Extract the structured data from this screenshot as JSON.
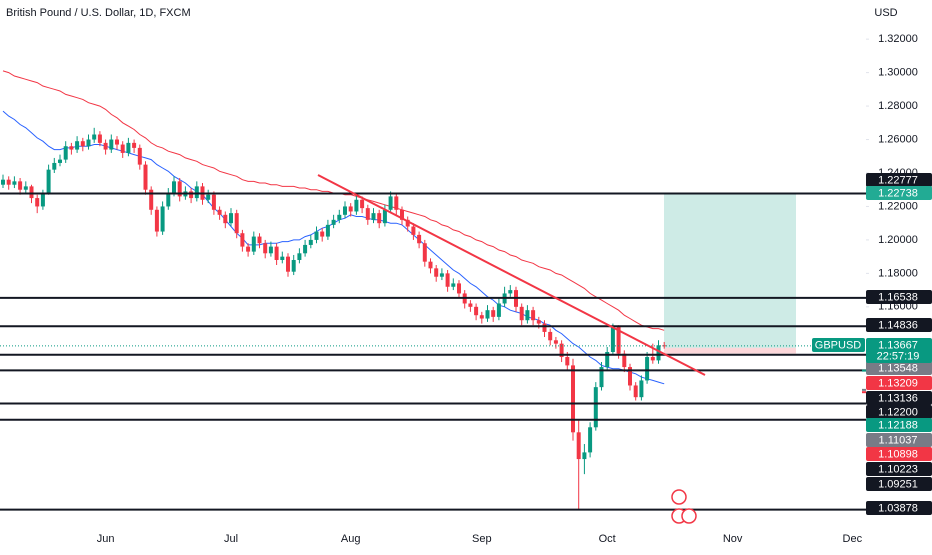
{
  "chart_data": {
    "type": "candlestick",
    "title": "British Pound / U.S. Dollar, 1D, FXCM",
    "currency": "USD",
    "up_color": "#089981",
    "down_color": "#f23645",
    "ylim": [
      1.029,
      1.3434
    ],
    "yticks": [
      {
        "value": 1.32,
        "label": "1.32000"
      },
      {
        "value": 1.3,
        "label": "1.30000"
      },
      {
        "value": 1.28,
        "label": "1.28000"
      },
      {
        "value": 1.26,
        "label": "1.26000"
      },
      {
        "value": 1.24,
        "label": "1.24000"
      },
      {
        "value": 1.22,
        "label": "1.22000"
      },
      {
        "value": 1.2,
        "label": "1.20000"
      },
      {
        "value": 1.18,
        "label": "1.18000"
      },
      {
        "value": 1.16,
        "label": "1.16000"
      }
    ],
    "grid": false,
    "categories": [
      null,
      null,
      null,
      null,
      null,
      null,
      null,
      null,
      null,
      null,
      null,
      null,
      null,
      null,
      null,
      null,
      null,
      null,
      "Jun",
      null,
      null,
      null,
      null,
      null,
      null,
      null,
      null,
      null,
      null,
      null,
      null,
      null,
      null,
      null,
      null,
      null,
      null,
      null,
      null,
      null,
      "Jul",
      null,
      null,
      null,
      null,
      null,
      null,
      null,
      null,
      null,
      null,
      null,
      null,
      null,
      null,
      null,
      null,
      null,
      null,
      null,
      null,
      "Aug",
      null,
      null,
      null,
      null,
      null,
      null,
      null,
      null,
      null,
      null,
      null,
      null,
      null,
      null,
      null,
      null,
      null,
      null,
      null,
      null,
      null,
      null,
      "Sep",
      null,
      null,
      null,
      null,
      null,
      null,
      null,
      null,
      null,
      null,
      null,
      null,
      null,
      null,
      null,
      null,
      null,
      null,
      null,
      null,
      null,
      "Oct",
      null,
      null,
      null,
      null,
      null,
      null,
      null,
      null,
      null,
      null,
      null,
      null,
      null,
      null,
      null,
      null,
      null,
      null,
      null,
      null,
      null,
      "Nov",
      null,
      null,
      null,
      null,
      null,
      null,
      null,
      null,
      null,
      null,
      null,
      null,
      null,
      null,
      null,
      null,
      null,
      null,
      null,
      null,
      "Dec",
      null,
      null,
      null
    ],
    "candles": [
      [
        1.233,
        1.239,
        1.231,
        1.236
      ],
      [
        1.236,
        1.238,
        1.23,
        1.233
      ],
      [
        1.233,
        1.238,
        1.231,
        1.235
      ],
      [
        1.235,
        1.237,
        1.227,
        1.23
      ],
      [
        1.23,
        1.235,
        1.228,
        1.232
      ],
      [
        1.232,
        1.233,
        1.222,
        1.225
      ],
      [
        1.225,
        1.227,
        1.216,
        1.22
      ],
      [
        1.22,
        1.23,
        1.218,
        1.228
      ],
      [
        1.228,
        1.245,
        1.227,
        1.242
      ],
      [
        1.242,
        1.249,
        1.24,
        1.246
      ],
      [
        1.246,
        1.251,
        1.244,
        1.248
      ],
      [
        1.248,
        1.259,
        1.246,
        1.256
      ],
      [
        1.256,
        1.258,
        1.251,
        1.254
      ],
      [
        1.254,
        1.262,
        1.252,
        1.259
      ],
      [
        1.259,
        1.261,
        1.253,
        1.256
      ],
      [
        1.256,
        1.263,
        1.254,
        1.26
      ],
      [
        1.26,
        1.267,
        1.258,
        1.263
      ],
      [
        1.263,
        1.265,
        1.256,
        1.258
      ],
      [
        1.258,
        1.26,
        1.251,
        1.254
      ],
      [
        1.254,
        1.263,
        1.252,
        1.26
      ],
      [
        1.26,
        1.262,
        1.254,
        1.257
      ],
      [
        1.257,
        1.259,
        1.249,
        1.252
      ],
      [
        1.252,
        1.261,
        1.25,
        1.258
      ],
      [
        1.258,
        1.26,
        1.252,
        1.255
      ],
      [
        1.255,
        1.257,
        1.242,
        1.245
      ],
      [
        1.245,
        1.247,
        1.227,
        1.23
      ],
      [
        1.23,
        1.232,
        1.215,
        1.218
      ],
      [
        1.218,
        1.22,
        1.202,
        1.205
      ],
      [
        1.205,
        1.223,
        1.203,
        1.22
      ],
      [
        1.22,
        1.231,
        1.218,
        1.228
      ],
      [
        1.228,
        1.238,
        1.226,
        1.235
      ],
      [
        1.235,
        1.237,
        1.223,
        1.226
      ],
      [
        1.226,
        1.232,
        1.224,
        1.229
      ],
      [
        1.229,
        1.231,
        1.222,
        1.225
      ],
      [
        1.225,
        1.235,
        1.223,
        1.232
      ],
      [
        1.232,
        1.234,
        1.221,
        1.224
      ],
      [
        1.224,
        1.23,
        1.222,
        1.227
      ],
      [
        1.227,
        1.229,
        1.215,
        1.218
      ],
      [
        1.218,
        1.22,
        1.212,
        1.215
      ],
      [
        1.215,
        1.217,
        1.207,
        1.21
      ],
      [
        1.21,
        1.219,
        1.208,
        1.216
      ],
      [
        1.216,
        1.218,
        1.201,
        1.204
      ],
      [
        1.204,
        1.206,
        1.193,
        1.196
      ],
      [
        1.196,
        1.198,
        1.19,
        1.193
      ],
      [
        1.193,
        1.205,
        1.191,
        1.202
      ],
      [
        1.202,
        1.204,
        1.195,
        1.198
      ],
      [
        1.198,
        1.2,
        1.189,
        1.192
      ],
      [
        1.192,
        1.199,
        1.19,
        1.196
      ],
      [
        1.196,
        1.198,
        1.185,
        1.188
      ],
      [
        1.188,
        1.193,
        1.186,
        1.19
      ],
      [
        1.19,
        1.192,
        1.178,
        1.181
      ],
      [
        1.181,
        1.191,
        1.179,
        1.188
      ],
      [
        1.188,
        1.195,
        1.186,
        1.192
      ],
      [
        1.192,
        1.2,
        1.19,
        1.197
      ],
      [
        1.197,
        1.203,
        1.195,
        1.2
      ],
      [
        1.2,
        1.208,
        1.198,
        1.205
      ],
      [
        1.205,
        1.207,
        1.199,
        1.202
      ],
      [
        1.202,
        1.212,
        1.2,
        1.209
      ],
      [
        1.209,
        1.215,
        1.207,
        1.212
      ],
      [
        1.212,
        1.218,
        1.21,
        1.215
      ],
      [
        1.215,
        1.223,
        1.213,
        1.22
      ],
      [
        1.22,
        1.222,
        1.214,
        1.217
      ],
      [
        1.217,
        1.227,
        1.215,
        1.224
      ],
      [
        1.224,
        1.226,
        1.216,
        1.219
      ],
      [
        1.219,
        1.221,
        1.209,
        1.212
      ],
      [
        1.212,
        1.219,
        1.21,
        1.216
      ],
      [
        1.216,
        1.218,
        1.207,
        1.21
      ],
      [
        1.21,
        1.221,
        1.208,
        1.218
      ],
      [
        1.218,
        1.229,
        1.216,
        1.226
      ],
      [
        1.226,
        1.228,
        1.215,
        1.218
      ],
      [
        1.218,
        1.22,
        1.209,
        1.212
      ],
      [
        1.212,
        1.214,
        1.205,
        1.208
      ],
      [
        1.208,
        1.21,
        1.2,
        1.203
      ],
      [
        1.203,
        1.205,
        1.195,
        1.198
      ],
      [
        1.198,
        1.2,
        1.184,
        1.187
      ],
      [
        1.187,
        1.189,
        1.18,
        1.183
      ],
      [
        1.183,
        1.185,
        1.175,
        1.178
      ],
      [
        1.178,
        1.183,
        1.176,
        1.18
      ],
      [
        1.18,
        1.182,
        1.169,
        1.172
      ],
      [
        1.172,
        1.177,
        1.17,
        1.174
      ],
      [
        1.174,
        1.176,
        1.165,
        1.168
      ],
      [
        1.168,
        1.17,
        1.159,
        1.162
      ],
      [
        1.162,
        1.164,
        1.157,
        1.16
      ],
      [
        1.16,
        1.162,
        1.152,
        1.155
      ],
      [
        1.155,
        1.157,
        1.15,
        1.153
      ],
      [
        1.153,
        1.161,
        1.151,
        1.158
      ],
      [
        1.158,
        1.16,
        1.151,
        1.154
      ],
      [
        1.154,
        1.165,
        1.152,
        1.162
      ],
      [
        1.162,
        1.172,
        1.16,
        1.168
      ],
      [
        1.168,
        1.173,
        1.166,
        1.17
      ],
      [
        1.17,
        1.172,
        1.157,
        1.16
      ],
      [
        1.16,
        1.162,
        1.149,
        1.152
      ],
      [
        1.152,
        1.161,
        1.15,
        1.158
      ],
      [
        1.158,
        1.16,
        1.149,
        1.152
      ],
      [
        1.152,
        1.154,
        1.147,
        1.15
      ],
      [
        1.15,
        1.152,
        1.142,
        1.145
      ],
      [
        1.145,
        1.147,
        1.137,
        1.14
      ],
      [
        1.14,
        1.142,
        1.135,
        1.138
      ],
      [
        1.138,
        1.14,
        1.127,
        1.13
      ],
      [
        1.13,
        1.133,
        1.122,
        1.125
      ],
      [
        1.125,
        1.129,
        1.08,
        1.085
      ],
      [
        1.085,
        1.092,
        1.0388,
        1.069
      ],
      [
        1.069,
        1.078,
        1.06,
        1.073
      ],
      [
        1.073,
        1.091,
        1.07,
        1.088
      ],
      [
        1.088,
        1.115,
        1.086,
        1.112
      ],
      [
        1.112,
        1.127,
        1.11,
        1.124
      ],
      [
        1.124,
        1.136,
        1.122,
        1.133
      ],
      [
        1.133,
        1.15,
        1.131,
        1.148
      ],
      [
        1.148,
        1.149,
        1.129,
        1.132
      ],
      [
        1.132,
        1.134,
        1.121,
        1.124
      ],
      [
        1.124,
        1.126,
        1.11,
        1.113
      ],
      [
        1.113,
        1.115,
        1.104,
        1.106
      ],
      [
        1.106,
        1.119,
        1.104,
        1.116
      ],
      [
        1.116,
        1.133,
        1.114,
        1.13
      ],
      [
        1.13,
        1.138,
        1.126,
        1.128
      ],
      [
        1.128,
        1.14,
        1.126,
        1.137
      ],
      [
        1.137,
        1.139,
        1.135,
        1.13667
      ],
      null,
      null,
      null,
      null,
      null,
      null,
      null,
      null,
      null,
      null,
      null,
      null,
      null,
      null,
      null,
      null,
      null,
      null,
      null,
      null,
      null,
      null,
      null,
      null,
      null,
      null,
      null,
      null,
      null,
      null,
      null,
      null,
      null,
      null,
      null,
      null
    ],
    "series": [
      {
        "color": "#f23645",
        "values": [
          1.301,
          1.3,
          1.298,
          1.297,
          1.296,
          1.295,
          1.294,
          1.292,
          1.291,
          1.29,
          1.289,
          1.287,
          1.286,
          1.285,
          1.284,
          1.282,
          1.281,
          1.28,
          1.278,
          1.275,
          1.273,
          1.27,
          1.268,
          1.266,
          1.263,
          1.261,
          1.258,
          1.256,
          1.255,
          1.253,
          1.252,
          1.251,
          1.249,
          1.248,
          1.247,
          1.245,
          1.244,
          1.243,
          1.241,
          1.24,
          1.239,
          1.238,
          1.236,
          1.235,
          1.235,
          1.234,
          1.234,
          1.233,
          1.233,
          1.232,
          1.232,
          1.232,
          1.231,
          1.231,
          1.23,
          1.23,
          1.229,
          1.229,
          1.228,
          1.228,
          1.227,
          1.227,
          1.226,
          1.225,
          1.224,
          1.223,
          1.222,
          1.221,
          1.22,
          1.219,
          1.218,
          1.217,
          1.216,
          1.215,
          1.214,
          1.212,
          1.211,
          1.209,
          1.208,
          1.206,
          1.205,
          1.203,
          1.202,
          1.2,
          1.199,
          1.197,
          1.196,
          1.194,
          1.193,
          1.191,
          1.19,
          1.188,
          1.187,
          1.186,
          1.184,
          1.183,
          1.182,
          1.18,
          1.179,
          1.177,
          1.175,
          1.173,
          1.171,
          1.168,
          1.166,
          1.164,
          1.162,
          1.16,
          1.158,
          1.155,
          1.153,
          1.151,
          1.149,
          1.148,
          1.147,
          1.147,
          1.146,
          null,
          null,
          null,
          null,
          null,
          null,
          null,
          null,
          null,
          null,
          null,
          null,
          null,
          null,
          null,
          null,
          null,
          null,
          null,
          null,
          null,
          null,
          null,
          null,
          null,
          null,
          null,
          null,
          null,
          null,
          null,
          null,
          null,
          null,
          null,
          null
        ]
      },
      {
        "color": "#2962ff",
        "values": [
          1.277,
          1.274,
          1.272,
          1.269,
          1.267,
          1.264,
          1.261,
          1.259,
          1.256,
          1.254,
          1.254,
          1.255,
          1.255,
          1.256,
          1.256,
          1.256,
          1.257,
          1.257,
          1.256,
          1.255,
          1.254,
          1.253,
          1.252,
          1.251,
          1.25,
          1.249,
          1.248,
          1.245,
          1.243,
          1.241,
          1.238,
          1.236,
          1.234,
          1.231,
          1.229,
          1.227,
          1.223,
          1.219,
          1.216,
          1.212,
          1.208,
          1.204,
          1.201,
          1.197,
          1.197,
          1.197,
          1.198,
          1.198,
          1.198,
          1.199,
          1.199,
          1.2,
          1.2,
          1.202,
          1.203,
          1.205,
          1.207,
          1.208,
          1.21,
          1.212,
          1.213,
          1.215,
          1.214,
          1.214,
          1.213,
          1.212,
          1.212,
          1.211,
          1.21,
          1.21,
          1.209,
          1.206,
          1.203,
          1.2,
          1.197,
          1.194,
          1.191,
          1.188,
          1.185,
          1.182,
          1.18,
          1.177,
          1.174,
          1.172,
          1.169,
          1.166,
          1.164,
          1.161,
          1.16,
          1.158,
          1.157,
          1.156,
          1.154,
          1.153,
          1.152,
          1.15,
          1.149,
          1.146,
          1.144,
          1.141,
          1.138,
          1.136,
          1.133,
          1.13,
          1.128,
          1.125,
          1.124,
          1.123,
          1.123,
          1.122,
          1.121,
          1.12,
          1.118,
          1.117,
          1.116,
          1.115,
          1.114,
          null,
          null,
          null,
          null,
          null,
          null,
          null,
          null,
          null,
          null,
          null,
          null,
          null,
          null,
          null,
          null,
          null,
          null,
          null,
          null,
          null,
          null,
          null,
          null,
          null,
          null,
          null,
          null,
          null,
          null,
          null,
          null,
          null,
          null,
          null,
          null
        ]
      }
    ],
    "levels": [
      {
        "value": 1.22777,
        "label": "1.22777"
      },
      {
        "value": 1.16538,
        "label": "1.16538"
      },
      {
        "value": 1.14836,
        "label": "1.14836"
      },
      {
        "value": 1.13136,
        "label": "1.13136"
      },
      {
        "value": 1.122,
        "label": "1.12200"
      },
      {
        "value": 1.10223,
        "label": "1.10223"
      },
      {
        "value": 1.09251,
        "label": "1.09251"
      },
      {
        "value": 1.03878,
        "label": "1.03878"
      }
    ],
    "level_color": "#131722",
    "position": {
      "target": {
        "value": 1.22738,
        "label": "1.22738",
        "color": "#22ab94"
      },
      "entry": {
        "value": 1.13548,
        "label": "1.13548",
        "color": "#787b86"
      },
      "stop": {
        "value": 1.13209,
        "label": "1.13209",
        "color": "#f23645"
      }
    },
    "last_price": {
      "symbol": "GBPUSD",
      "value": 1.13667,
      "label": "1.13667",
      "countdown": "22:57:19",
      "color": "#089981"
    },
    "other_labels": [
      {
        "value": 1.12188,
        "label": "1.12188",
        "color": "#089981"
      },
      {
        "value": 1.11037,
        "label": "1.11037",
        "color": "#787b86"
      },
      {
        "value": 1.10898,
        "label": "1.10898",
        "color": "#f23645"
      }
    ]
  }
}
